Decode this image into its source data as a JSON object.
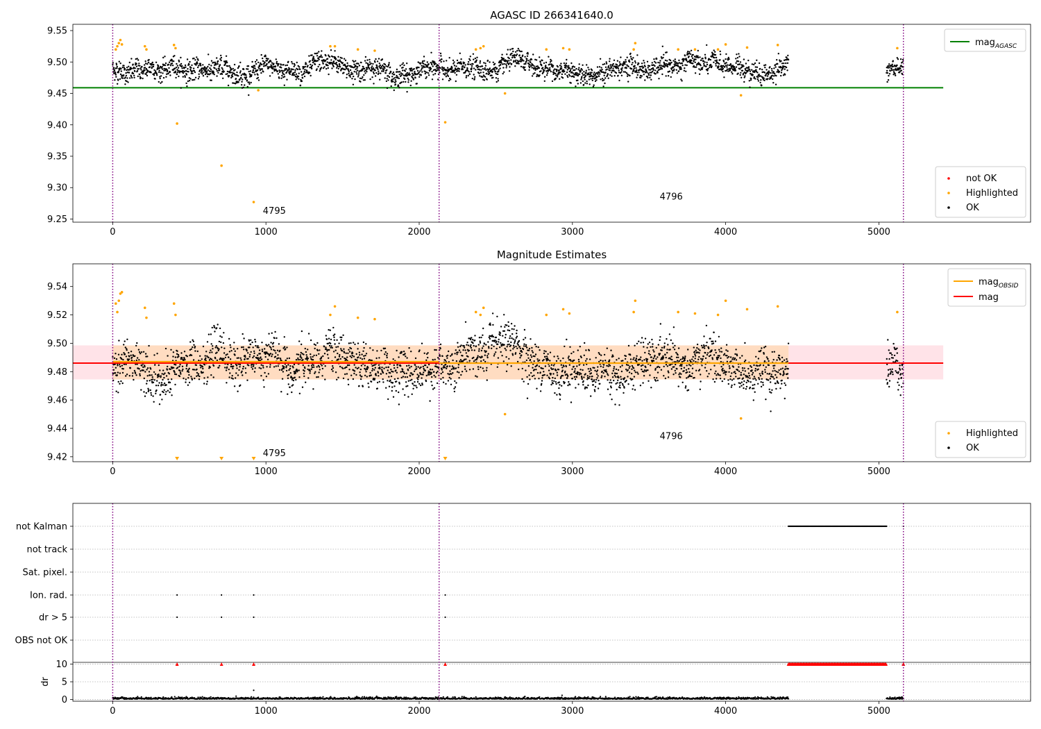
{
  "chart_data": [
    {
      "type": "scatter",
      "title": "AGASC ID 266341640.0",
      "xlim": [
        -260,
        5990
      ],
      "ylim": [
        9.245,
        9.56
      ],
      "xticks": [
        0,
        1000,
        2000,
        3000,
        4000,
        5000
      ],
      "yticks": [
        9.25,
        9.3,
        9.35,
        9.4,
        9.45,
        9.5,
        9.55
      ],
      "obs_boundaries": [
        0,
        2130,
        5160
      ],
      "obs_labels": [
        {
          "text": "4795",
          "x": 980,
          "y": 9.258
        },
        {
          "text": "4796",
          "x": 3570,
          "y": 9.281
        }
      ],
      "mag_agasc": 9.459,
      "mag_agasc_xrange": [
        -260,
        5420
      ],
      "ok_segments": [
        [
          0,
          4410
        ],
        [
          5050,
          5160
        ]
      ],
      "ok_mean": 9.488,
      "ok_spread": 0.011,
      "highlighted_points": [
        [
          20,
          9.52
        ],
        [
          30,
          9.525
        ],
        [
          40,
          9.53
        ],
        [
          50,
          9.535
        ],
        [
          60,
          9.528
        ],
        [
          210,
          9.525
        ],
        [
          220,
          9.52
        ],
        [
          400,
          9.527
        ],
        [
          410,
          9.522
        ],
        [
          420,
          9.402
        ],
        [
          710,
          9.335
        ],
        [
          920,
          9.277
        ],
        [
          950,
          9.455
        ],
        [
          1420,
          9.525
        ],
        [
          1450,
          9.525
        ],
        [
          1600,
          9.52
        ],
        [
          1710,
          9.518
        ],
        [
          2170,
          9.404
        ],
        [
          2370,
          9.52
        ],
        [
          2400,
          9.522
        ],
        [
          2420,
          9.525
        ],
        [
          2560,
          9.45
        ],
        [
          2830,
          9.52
        ],
        [
          2940,
          9.522
        ],
        [
          2980,
          9.52
        ],
        [
          3400,
          9.52
        ],
        [
          3410,
          9.53
        ],
        [
          3690,
          9.52
        ],
        [
          3800,
          9.52
        ],
        [
          3950,
          9.52
        ],
        [
          4000,
          9.528
        ],
        [
          4100,
          9.447
        ],
        [
          4140,
          9.523
        ],
        [
          4340,
          9.527
        ],
        [
          5120,
          9.522
        ]
      ],
      "legend_lines": [
        {
          "label": "mag",
          "sub": "AGASC",
          "color": "#008000"
        }
      ],
      "legend_points": [
        {
          "label": "not OK",
          "color": "#ff0000"
        },
        {
          "label": "Highlighted",
          "color": "#ffa500"
        },
        {
          "label": "OK",
          "color": "#000000"
        }
      ]
    },
    {
      "type": "scatter",
      "title": "Magnitude Estimates",
      "xlim": [
        -260,
        5990
      ],
      "ylim": [
        9.4165,
        9.556
      ],
      "xticks": [
        0,
        1000,
        2000,
        3000,
        4000,
        5000
      ],
      "yticks": [
        9.42,
        9.44,
        9.46,
        9.48,
        9.5,
        9.52,
        9.54
      ],
      "obs_boundaries": [
        0,
        2130,
        5160
      ],
      "obs_labels": [
        {
          "text": "4795",
          "x": 980,
          "y": 9.4205
        },
        {
          "text": "4796",
          "x": 3570,
          "y": 9.4325
        }
      ],
      "mag": 9.486,
      "mag_band": [
        9.4745,
        9.4985
      ],
      "mag_obsid": [
        {
          "x": [
            0,
            2130
          ],
          "y": 9.487
        },
        {
          "x": [
            2130,
            4410
          ],
          "y": 9.486
        }
      ],
      "line_xrange": [
        -260,
        5420
      ],
      "ok_segments": [
        [
          0,
          4410
        ],
        [
          5050,
          5160
        ]
      ],
      "ok_mean": 9.486,
      "ok_spread": 0.01,
      "highlighted_points": [
        [
          20,
          9.528
        ],
        [
          30,
          9.522
        ],
        [
          40,
          9.53
        ],
        [
          50,
          9.535
        ],
        [
          60,
          9.536
        ],
        [
          210,
          9.525
        ],
        [
          220,
          9.518
        ],
        [
          400,
          9.528
        ],
        [
          410,
          9.52
        ],
        [
          1420,
          9.52
        ],
        [
          1450,
          9.526
        ],
        [
          1600,
          9.518
        ],
        [
          1710,
          9.517
        ],
        [
          2370,
          9.522
        ],
        [
          2400,
          9.52
        ],
        [
          2420,
          9.525
        ],
        [
          2560,
          9.45
        ],
        [
          2830,
          9.52
        ],
        [
          2940,
          9.524
        ],
        [
          2980,
          9.521
        ],
        [
          3400,
          9.522
        ],
        [
          3410,
          9.53
        ],
        [
          3690,
          9.522
        ],
        [
          3800,
          9.521
        ],
        [
          3950,
          9.52
        ],
        [
          4000,
          9.53
        ],
        [
          4100,
          9.447
        ],
        [
          4140,
          9.524
        ],
        [
          4340,
          9.526
        ],
        [
          5120,
          9.522
        ]
      ],
      "offscale_points": [
        420,
        710,
        920,
        2170
      ],
      "legend_lines": [
        {
          "label": "mag",
          "sub": "OBSID",
          "color": "#ffa500"
        },
        {
          "label": "mag",
          "sub": "",
          "color": "#ff0000"
        }
      ],
      "legend_points": [
        {
          "label": "Highlighted",
          "color": "#ffa500"
        },
        {
          "label": "OK",
          "color": "#000000"
        }
      ]
    },
    {
      "type": "scatter",
      "xlim": [
        -260,
        5990
      ],
      "xticks": [
        0,
        1000,
        2000,
        3000,
        4000,
        5000
      ],
      "obs_boundaries": [
        0,
        2130,
        5160
      ],
      "flag_rows": [
        "not Kalman",
        "not track",
        "Sat. pixel.",
        "Ion. rad.",
        "dr > 5",
        "OBS not OK"
      ],
      "flag_points": {
        "not Kalman": {
          "ranges": [
            [
              4410,
              5050
            ]
          ],
          "points": [
            5160
          ]
        },
        "Ion. rad.": {
          "ranges": [],
          "points": [
            420,
            710,
            920,
            2170
          ]
        },
        "dr > 5": {
          "ranges": [],
          "points": [
            420,
            710,
            920,
            2170
          ]
        }
      },
      "dr_ylabel": "dr",
      "dr_ylim": [
        -0.5,
        10.5
      ],
      "dr_yticks": [
        0,
        5,
        10
      ],
      "dr_clipped_points": [
        420,
        710,
        920,
        2170
      ],
      "dr_clipped_ranges": [
        [
          4410,
          5050
        ],
        [
          5160,
          5160
        ]
      ],
      "dr_extra_points": [
        [
          920,
          2.6
        ]
      ],
      "dr_base_segments": [
        [
          0,
          4410
        ],
        [
          5050,
          5160
        ]
      ]
    }
  ]
}
